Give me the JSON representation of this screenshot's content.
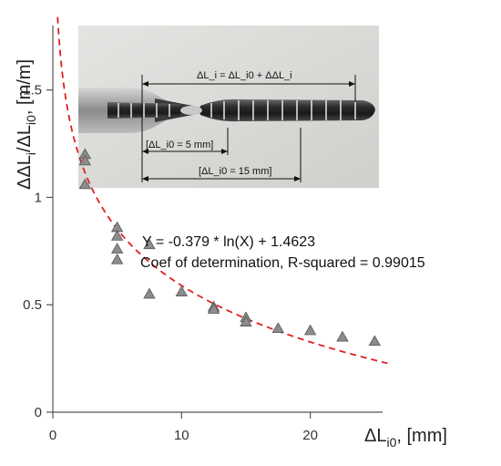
{
  "chart_data": {
    "type": "scatter",
    "xlabel": "ΔL_i0, [mm]",
    "xlabel_main": "ΔL",
    "xlabel_sub": "i0",
    "xlabel_unit": ", [mm]",
    "ylabel": "ΔΔL_i/ΔL_i0, [m/m]",
    "ylabel_part1": "ΔΔL",
    "ylabel_sub1": "i",
    "ylabel_part2": "/ΔL",
    "ylabel_sub2": "i0",
    "ylabel_unit": ", [m/m]",
    "xlim": [
      0,
      26
    ],
    "ylim": [
      0,
      1.8
    ],
    "x_ticks": [
      0,
      10,
      20
    ],
    "x_tick_labels": [
      "0",
      "10",
      "20"
    ],
    "y_ticks": [
      0,
      0.5,
      1,
      1.5
    ],
    "y_tick_labels": [
      "0",
      "0.5",
      "1",
      "1.5"
    ],
    "grid": false,
    "series": [
      {
        "marker": "triangle",
        "color": "#8c8c8c",
        "x": [
          2.5,
          2.5,
          2.5,
          5,
          5,
          5,
          5,
          7.5,
          7.5,
          10,
          12.5,
          12.5,
          15,
          15,
          17.5,
          20,
          22.5,
          25
        ],
        "y": [
          1.2,
          1.17,
          1.06,
          0.86,
          0.82,
          0.76,
          0.71,
          0.78,
          0.55,
          0.56,
          0.49,
          0.48,
          0.44,
          0.42,
          0.39,
          0.38,
          0.35,
          0.33
        ]
      }
    ],
    "fit": {
      "a": -0.379,
      "b": 1.4623,
      "x_range": [
        0.15,
        26
      ],
      "color": "#e02020",
      "style": "dashed"
    },
    "annotations": {
      "equation": "Y = -0.379 * ln(X) + 1.4623",
      "r_squared": "Coef of determination, R-squared = 0.99015"
    }
  },
  "photo": {
    "label_total": "ΔL_i = ΔL_i0 + ΔΔL_i",
    "label_5mm": "[ΔL_i0 = 5 mm]",
    "label_15mm": "[ΔL_i0 = 15 mm]"
  }
}
